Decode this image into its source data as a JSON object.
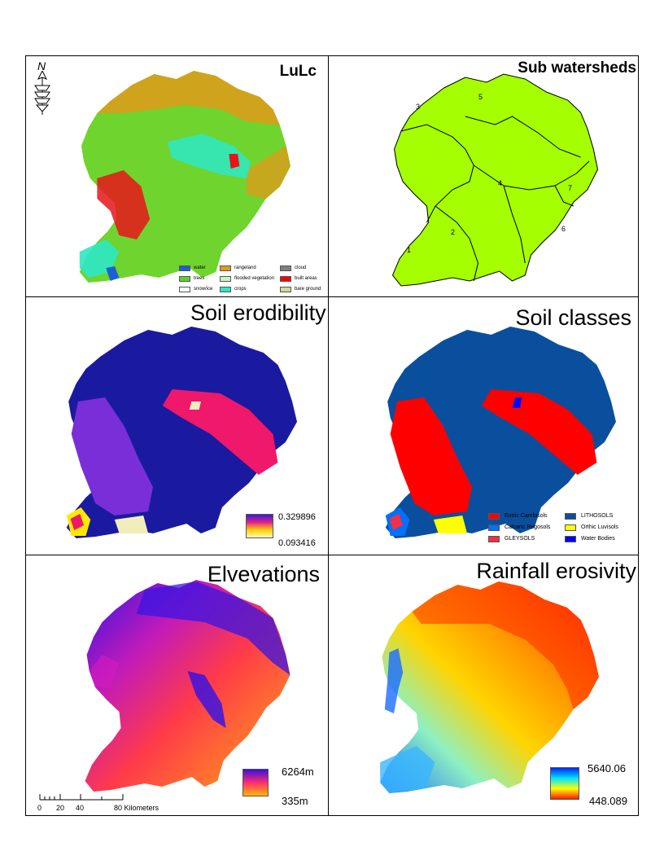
{
  "panels": {
    "lulc": {
      "title": "LuLc",
      "north_label": "N",
      "legend": [
        {
          "label": "water",
          "color": "#1a5fd6"
        },
        {
          "label": "rangeland",
          "color": "#e29a1a"
        },
        {
          "label": "cloud",
          "color": "#808080"
        },
        {
          "label": "trees",
          "color": "#55d62a"
        },
        {
          "label": "flooded vegetation",
          "color": "#c8f5c0"
        },
        {
          "label": "built areas",
          "color": "#ff0000"
        },
        {
          "label": "snow/ice",
          "color": "#ffffff"
        },
        {
          "label": "crops",
          "color": "#2ee8c4"
        },
        {
          "label": "bare ground",
          "color": "#cfd9a0"
        }
      ]
    },
    "subwatersheds": {
      "title": "Sub watersheds",
      "fill_color": "#a5ff00",
      "labels": [
        "1",
        "2",
        "3",
        "4",
        "5",
        "6",
        "7"
      ]
    },
    "erodibility": {
      "title": "Soil erodibility",
      "max_label": "0.329896",
      "min_label": "0.093416"
    },
    "soil_classes": {
      "title": "Soil classes",
      "legend": [
        {
          "label": "Eutric Cambisols",
          "color": "#ff0000"
        },
        {
          "label": "LITHOSOLS",
          "color": "#0a4f9e"
        },
        {
          "label": "Calcaric Regosols",
          "color": "#0070ff"
        },
        {
          "label": "Orthic Luvisols",
          "color": "#ffff00"
        },
        {
          "label": "GLEYSOLS",
          "color": "#f0304a"
        },
        {
          "label": "Water Bodies",
          "color": "#0000ff"
        }
      ]
    },
    "elevations": {
      "title": "Elvevations",
      "max_label": "6264m",
      "min_label": "335m",
      "scale_ticks": [
        "0",
        "20",
        "40",
        "80 Kilometers"
      ]
    },
    "rainfall": {
      "title": "Rainfall erosivity",
      "max_label": "5640.06",
      "min_label": "448.089"
    }
  }
}
